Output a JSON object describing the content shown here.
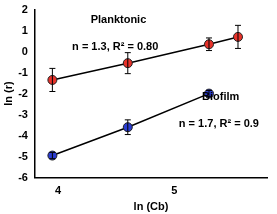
{
  "chart_data": {
    "type": "scatter",
    "x_label": "ln (Cb)",
    "y_label": "ln (r)",
    "annotations": [
      "Planktonic",
      "n = 1.3, R² = 0.80",
      "Biofilm",
      "n = 1.7, R² = 0.9"
    ],
    "series": [
      {
        "color": "#e8322a",
        "x": [
          3.95,
          4.6,
          5.3,
          5.55
        ],
        "values": [
          -1.35,
          -0.55,
          0.35,
          0.7
        ],
        "errors": [
          0.55,
          0.5,
          0.3,
          0.55
        ],
        "marker": "circle",
        "line_style": "solid"
      },
      {
        "color": "#2a3cd0",
        "x": [
          3.95,
          4.6,
          5.3
        ],
        "values": [
          -4.95,
          -3.6,
          -2.0
        ],
        "errors": [
          0.15,
          0.35,
          0.15
        ],
        "marker": "circle",
        "line_style": "solid"
      }
    ],
    "xlim": [
      3.8,
      5.8
    ],
    "xticks": [
      4,
      5
    ],
    "ylim": [
      -6,
      2
    ],
    "yticks": [
      -6,
      -5,
      -4,
      -3,
      -2,
      -1,
      0,
      1,
      2
    ],
    "grid": false
  }
}
